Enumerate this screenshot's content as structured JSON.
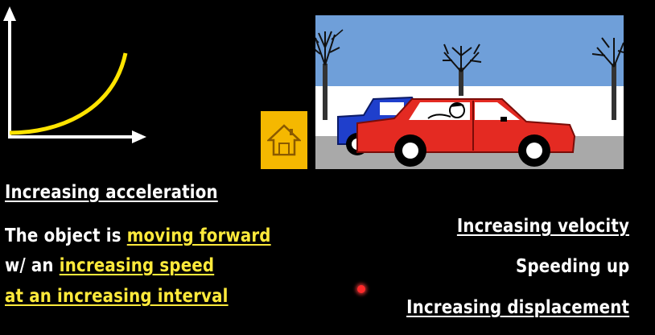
{
  "graph": {
    "curve_color": "#ffe400",
    "axis_color": "#ffffff"
  },
  "home_button": {
    "icon": "house-icon",
    "color": "#f5b800"
  },
  "left_text": {
    "heading": "Increasing acceleration",
    "line1_a": "The object is ",
    "line1_b": "moving forward",
    "line2_a": "w/ an ",
    "line2_b": "increasing speed",
    "line3": "at an increasing interval"
  },
  "right_text": {
    "item1": "Increasing velocity",
    "item2": "Speeding up",
    "item3": "Increasing displacement"
  },
  "scene": {
    "sky_color": "#6f9fd9",
    "ground_color": "#a9a9a9"
  }
}
